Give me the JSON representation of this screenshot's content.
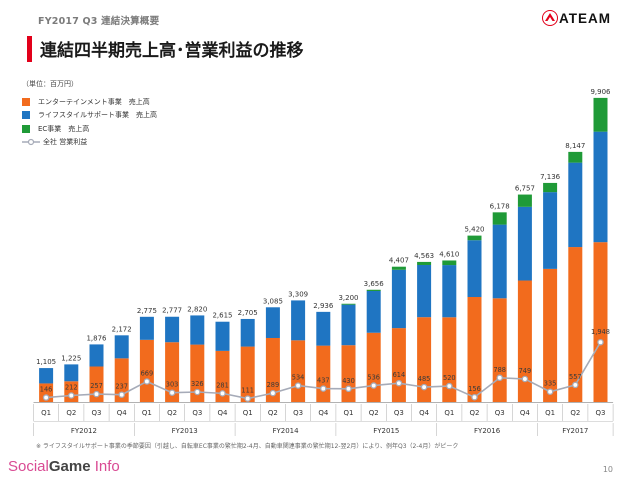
{
  "header": {
    "subtitle": "FY2017 Q3 連結決算概要",
    "title": "連結四半期売上高･営業利益の推移",
    "logo_text": "ATEAM",
    "accent_color": "#e2001a"
  },
  "chart_data": {
    "type": "bar",
    "stacked": true,
    "unit": "（単位：百万円）",
    "categories": [
      "Q1",
      "Q2",
      "Q3",
      "Q4",
      "Q1",
      "Q2",
      "Q3",
      "Q4",
      "Q1",
      "Q2",
      "Q3",
      "Q4",
      "Q1",
      "Q2",
      "Q3",
      "Q4",
      "Q1",
      "Q2",
      "Q3",
      "Q4",
      "Q1",
      "Q2",
      "Q3"
    ],
    "year_groups": [
      {
        "label": "FY2012",
        "count": 4
      },
      {
        "label": "FY2013",
        "count": 4
      },
      {
        "label": "FY2014",
        "count": 4
      },
      {
        "label": "FY2015",
        "count": 4
      },
      {
        "label": "FY2016",
        "count": 4
      },
      {
        "label": "FY2017",
        "count": 3
      }
    ],
    "totals": [
      1105,
      1225,
      1876,
      2172,
      2775,
      2777,
      2820,
      2615,
      2705,
      3085,
      3309,
      2936,
      3200,
      3656,
      4407,
      4563,
      4610,
      5420,
      6178,
      6757,
      7136,
      8147,
      9906
    ],
    "series": [
      {
        "name": "エンターテインメント事業　売上高",
        "color": "#f26b1d",
        "values": [
          605,
          675,
          1156,
          1422,
          2025,
          1947,
          1870,
          1665,
          1805,
          2085,
          2009,
          1836,
          1850,
          2256,
          2407,
          2763,
          2760,
          3420,
          3378,
          3957,
          4336,
          5047,
          5206
        ]
      },
      {
        "name": "ライフスタイルサポート事業　売上高",
        "color": "#1f75c2",
        "values": [
          500,
          550,
          720,
          750,
          750,
          830,
          950,
          950,
          900,
          1000,
          1300,
          1100,
          1320,
          1360,
          1900,
          1700,
          1700,
          1850,
          2400,
          2400,
          2500,
          2750,
          3600
        ]
      },
      {
        "name": "EC事業　売上高",
        "color": "#1f9a37",
        "values": [
          0,
          0,
          0,
          0,
          0,
          0,
          0,
          0,
          0,
          0,
          0,
          0,
          30,
          40,
          100,
          100,
          150,
          150,
          400,
          400,
          300,
          350,
          1100
        ]
      }
    ],
    "operating_profit": {
      "name": "全社 営業利益",
      "color": "#a6abb8",
      "values": [
        146,
        212,
        257,
        237,
        669,
        303,
        326,
        281,
        111,
        289,
        534,
        437,
        430,
        536,
        614,
        485,
        520,
        156,
        788,
        749,
        335,
        557,
        1948
      ],
      "labels": [
        "146",
        "212",
        "257",
        "237",
        "669",
        "303",
        "326",
        "281",
        "111",
        "289",
        "534",
        "437",
        "430",
        "536",
        "614",
        "485",
        "520",
        "156",
        "788",
        "749",
        "335",
        "557",
        "1,948"
      ]
    },
    "total_labels": [
      "1,105",
      "1,225",
      "1,876",
      "2,172",
      "2,775",
      "2,777",
      "2,820",
      "2,615",
      "2,705",
      "3,085",
      "3,309",
      "2,936",
      "3,200",
      "3,656",
      "4,407",
      "4,563",
      "4,610",
      "5,420",
      "6,178",
      "6,757",
      "7,136",
      "8,147",
      "9,906"
    ],
    "ylim": [
      0,
      10000
    ]
  },
  "footnote": "※ ライフスタイルサポート事業の季節要因（引越し、自転車EC事業の繁忙期2-4月、自動車関連事業の繁忙期12-翌2月）により、例年Q3（2-4月）がピーク",
  "watermark": {
    "part1": "Social",
    "part2": "Game",
    "part3": "Info"
  },
  "page_number": "10"
}
